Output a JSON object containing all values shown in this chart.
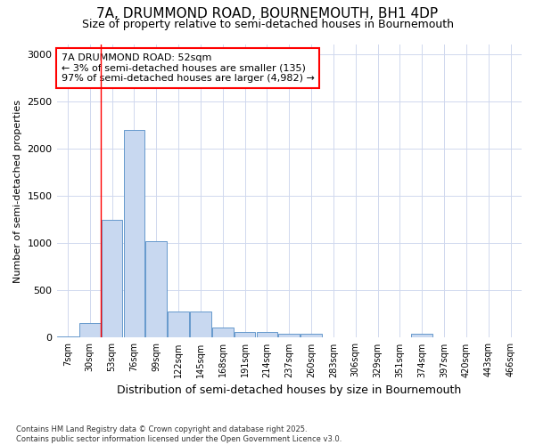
{
  "title_line1": "7A, DRUMMOND ROAD, BOURNEMOUTH, BH1 4DP",
  "title_line2": "Size of property relative to semi-detached houses in Bournemouth",
  "xlabel": "Distribution of semi-detached houses by size in Bournemouth",
  "ylabel": "Number of semi-detached properties",
  "footnote": "Contains HM Land Registry data © Crown copyright and database right 2025.\nContains public sector information licensed under the Open Government Licence v3.0.",
  "bin_labels": [
    "7sqm",
    "30sqm",
    "53sqm",
    "76sqm",
    "99sqm",
    "122sqm",
    "145sqm",
    "168sqm",
    "191sqm",
    "214sqm",
    "237sqm",
    "260sqm",
    "283sqm",
    "306sqm",
    "329sqm",
    "351sqm",
    "374sqm",
    "397sqm",
    "420sqm",
    "443sqm",
    "466sqm"
  ],
  "bar_values": [
    10,
    150,
    1250,
    2200,
    1020,
    280,
    280,
    110,
    60,
    60,
    45,
    45,
    0,
    0,
    0,
    0,
    45,
    0,
    0,
    0,
    0
  ],
  "bar_color": "#c8d8f0",
  "bar_edgecolor": "#6699cc",
  "ylim": [
    0,
    3100
  ],
  "yticks": [
    0,
    500,
    1000,
    1500,
    2000,
    2500,
    3000
  ],
  "vline_x": 2.0,
  "annotation_text": "7A DRUMMOND ROAD: 52sqm\n← 3% of semi-detached houses are smaller (135)\n97% of semi-detached houses are larger (4,982) →",
  "bg_color": "#ffffff",
  "grid_color": "#d0d8ee"
}
